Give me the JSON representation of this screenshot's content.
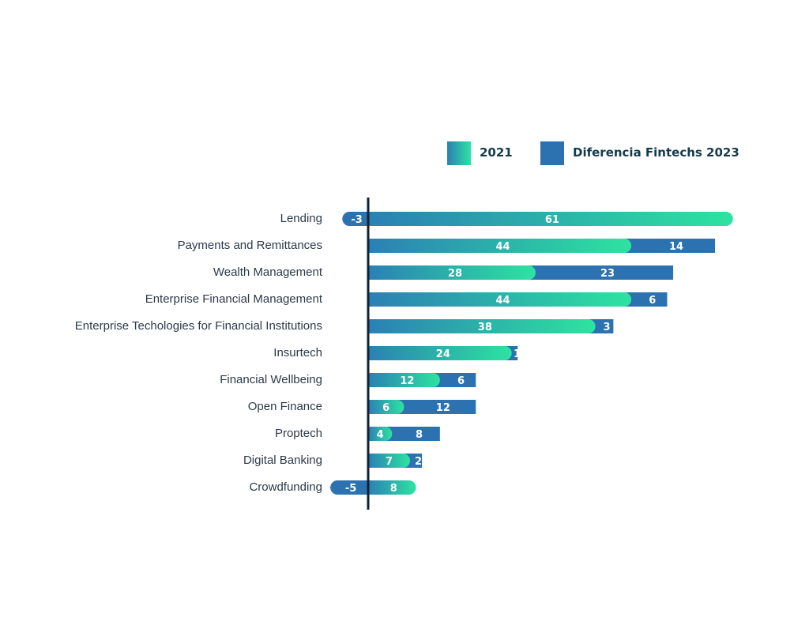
{
  "chart_data": {
    "type": "bar",
    "orientation": "horizontal",
    "stacked": true,
    "legend_position": "top-right",
    "grid": false,
    "categories": [
      "Lending",
      "Payments and Remittances",
      "Wealth Management",
      "Enterprise Financial Management",
      "Enterprise Techologies for Financial Institutions",
      "Insurtech",
      "Financial Wellbeing",
      "Open Finance",
      "Proptech",
      "Digital Banking",
      "Crowdfunding"
    ],
    "series": [
      {
        "name": "2021",
        "values": [
          61,
          44,
          28,
          44,
          38,
          24,
          12,
          6,
          4,
          7,
          8
        ]
      },
      {
        "name": "Diferencia Fintechs 2023",
        "values": [
          -3,
          14,
          23,
          6,
          3,
          1,
          6,
          12,
          8,
          2,
          -5
        ]
      }
    ],
    "colors": {
      "2021_start": "#2b80b4",
      "2021_end": "#2de3a0",
      "diferencia": "#2d72b0",
      "axis": "#0e2236",
      "legend_text": "#123a4d",
      "category_text": "#2b3a4a"
    }
  }
}
